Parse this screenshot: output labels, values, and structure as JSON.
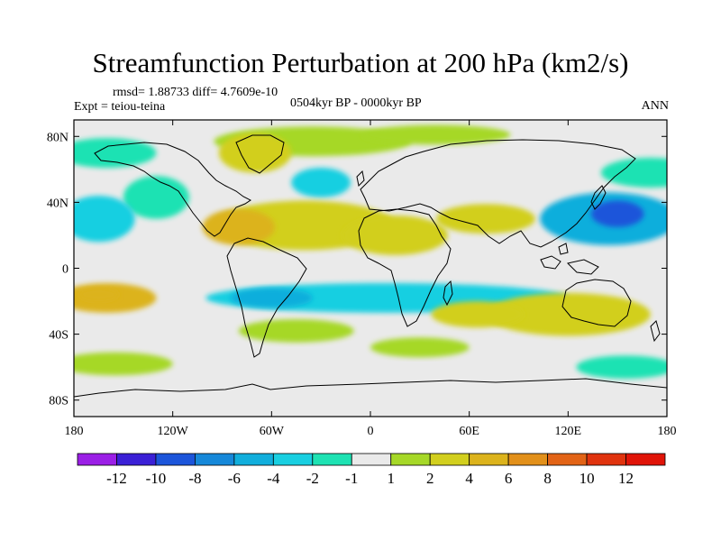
{
  "chart_data": {
    "type": "heatmap",
    "title": "Streamfunction Perturbation at 200 hPa (km2/s)",
    "stats_text": "rmsd= 1.88733 diff= 4.7609e-10",
    "expt_text": "Expt = teiou-teina",
    "period_text": "0504kyr BP - 0000kyr BP",
    "season_text": "ANN",
    "x_ticks": [
      {
        "value": -180,
        "label": "180"
      },
      {
        "value": -120,
        "label": "120W"
      },
      {
        "value": -60,
        "label": "60W"
      },
      {
        "value": 0,
        "label": "0"
      },
      {
        "value": 60,
        "label": "60E"
      },
      {
        "value": 120,
        "label": "120E"
      },
      {
        "value": 180,
        "label": "180"
      }
    ],
    "y_ticks": [
      {
        "value": 80,
        "label": "80N"
      },
      {
        "value": 40,
        "label": "40N"
      },
      {
        "value": 0,
        "label": "0"
      },
      {
        "value": -40,
        "label": "40S"
      },
      {
        "value": -80,
        "label": "80S"
      }
    ],
    "xlim": [
      -180,
      180
    ],
    "ylim": [
      -90,
      90
    ],
    "colorbar": {
      "colors": [
        "#9B1FE6",
        "#3B20D6",
        "#1C55DA",
        "#1688D9",
        "#11AEDC",
        "#19CFE1",
        "#1EE2B3",
        "#EAEAEA",
        "#A6D828",
        "#D2CF1E",
        "#DCB31C",
        "#E2901A",
        "#E26316",
        "#E0330E",
        "#E01408"
      ],
      "labels": [
        {
          "boundary": 1,
          "label": "-12"
        },
        {
          "boundary": 2,
          "label": "-10"
        },
        {
          "boundary": 3,
          "label": "-8"
        },
        {
          "boundary": 4,
          "label": "-6"
        },
        {
          "boundary": 5,
          "label": "-4"
        },
        {
          "boundary": 6,
          "label": "-2"
        },
        {
          "boundary": 7,
          "label": "-1"
        },
        {
          "boundary": 8,
          "label": "1"
        },
        {
          "boundary": 9,
          "label": "2"
        },
        {
          "boundary": 10,
          "label": "4"
        },
        {
          "boundary": 11,
          "label": "6"
        },
        {
          "boundary": 12,
          "label": "8"
        },
        {
          "boundary": 13,
          "label": "10"
        },
        {
          "boundary": 14,
          "label": "12"
        }
      ]
    },
    "features": [
      {
        "name": "arctic-positive",
        "lon": -35,
        "lat": 77,
        "rx": 60,
        "ry": 9,
        "level": 1.5
      },
      {
        "name": "arctic-positive-east",
        "lon": 40,
        "lat": 81,
        "rx": 45,
        "ry": 6,
        "level": 1.5
      },
      {
        "name": "n-pacific-negative",
        "lon": -160,
        "lat": 70,
        "rx": 30,
        "ry": 9,
        "level": -1.5
      },
      {
        "name": "greenland-positive",
        "lon": -70,
        "lat": 70,
        "rx": 22,
        "ry": 12,
        "level": 2.5
      },
      {
        "name": "n-atlantic-negative",
        "lon": -30,
        "lat": 52,
        "rx": 18,
        "ry": 9,
        "level": -2.5
      },
      {
        "name": "n-america-negative",
        "lon": -130,
        "lat": 43,
        "rx": 20,
        "ry": 13,
        "level": -1.5
      },
      {
        "name": "e-pacific-negative",
        "lon": -165,
        "lat": 30,
        "rx": 22,
        "ry": 14,
        "level": -3
      },
      {
        "name": "atlantic-positive",
        "lon": -40,
        "lat": 26,
        "rx": 55,
        "ry": 15,
        "level": 3
      },
      {
        "name": "caribbean-positive",
        "lon": -80,
        "lat": 25,
        "rx": 22,
        "ry": 11,
        "level": 4.5
      },
      {
        "name": "africa-positive",
        "lon": 15,
        "lat": 20,
        "rx": 32,
        "ry": 12,
        "level": 3
      },
      {
        "name": "arabia-positive",
        "lon": 70,
        "lat": 30,
        "rx": 30,
        "ry": 9,
        "level": 2.5
      },
      {
        "name": "pacific-negative",
        "lon": 145,
        "lat": 30,
        "rx": 42,
        "ry": 16,
        "level": -5
      },
      {
        "name": "pacific-negative-core",
        "lon": 150,
        "lat": 33,
        "rx": 16,
        "ry": 8,
        "level": -8
      },
      {
        "name": "ne-pacific-negative",
        "lon": 170,
        "lat": 58,
        "rx": 30,
        "ry": 9,
        "level": -1.5
      },
      {
        "name": "tropical-s-negative",
        "lon": 10,
        "lat": -18,
        "rx": 110,
        "ry": 9,
        "level": -3.5
      },
      {
        "name": "s-america-negative-core",
        "lon": -60,
        "lat": -18,
        "rx": 25,
        "ry": 6,
        "level": -5
      },
      {
        "name": "s-pacific-positive",
        "lon": -160,
        "lat": -18,
        "rx": 30,
        "ry": 9,
        "level": 4.5
      },
      {
        "name": "s-pacific-positive-core",
        "lon": -165,
        "lat": -16,
        "rx": 12,
        "ry": 4,
        "level": 6
      },
      {
        "name": "australia-positive",
        "lon": 120,
        "lat": -28,
        "rx": 50,
        "ry": 13,
        "level": 3.5
      },
      {
        "name": "s-indian-positive",
        "lon": 65,
        "lat": -28,
        "rx": 28,
        "ry": 8,
        "level": 2.5
      },
      {
        "name": "s-atlantic-positive",
        "lon": -45,
        "lat": -38,
        "rx": 35,
        "ry": 7,
        "level": 1.5
      },
      {
        "name": "s-pacific-band-positive",
        "lon": -155,
        "lat": -58,
        "rx": 35,
        "ry": 7,
        "level": 1.5
      },
      {
        "name": "s-ocean-positive",
        "lon": 30,
        "lat": -48,
        "rx": 30,
        "ry": 6,
        "level": 1.5
      },
      {
        "name": "s-ocean-negative",
        "lon": 155,
        "lat": -60,
        "rx": 30,
        "ry": 7,
        "level": -1.5
      }
    ]
  }
}
